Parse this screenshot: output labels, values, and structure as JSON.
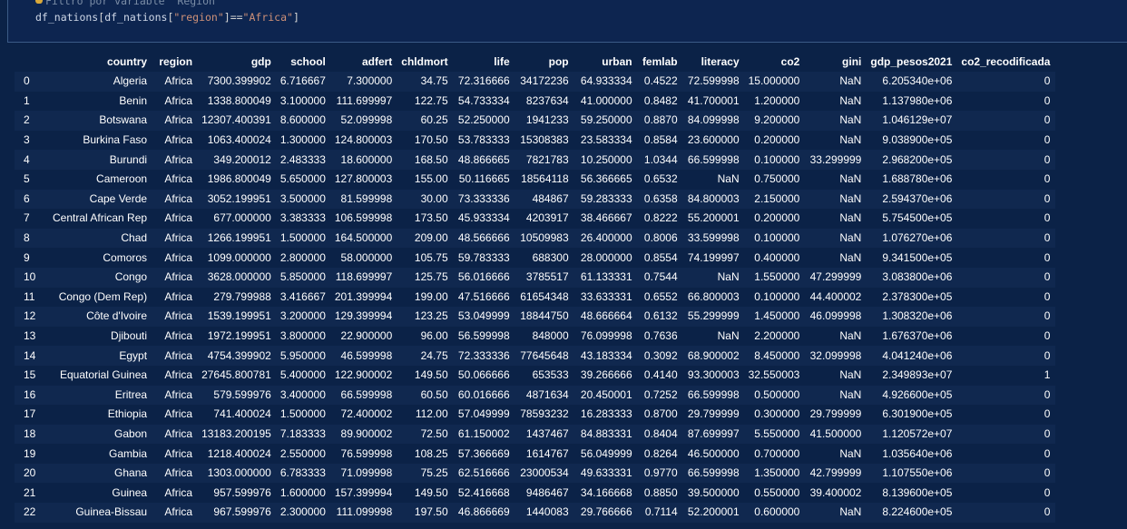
{
  "code_cell": {
    "comment": "Filtro por variable \"Region\"",
    "code_parts": {
      "var1": "df_nations",
      "open": "[",
      "var2": "df_nations",
      "open2": "[",
      "key": "\"region\"",
      "close_eq": "]==",
      "value": "\"Africa\"",
      "close": "]"
    }
  },
  "table": {
    "columns": [
      "country",
      "region",
      "gdp",
      "school",
      "adfert",
      "chldmort",
      "life",
      "pop",
      "urban",
      "femlab",
      "literacy",
      "co2",
      "gini",
      "gdp_pesos2021",
      "co2_recodificada"
    ],
    "rows": [
      [
        "0",
        "Algeria",
        "Africa",
        "7300.399902",
        "6.716667",
        "7.300000",
        "34.75",
        "72.316666",
        "34172236",
        "64.933334",
        "0.4522",
        "72.599998",
        "15.000000",
        "NaN",
        "6.205340e+06",
        "0"
      ],
      [
        "1",
        "Benin",
        "Africa",
        "1338.800049",
        "3.100000",
        "111.699997",
        "122.75",
        "54.733334",
        "8237634",
        "41.000000",
        "0.8482",
        "41.700001",
        "1.200000",
        "NaN",
        "1.137980e+06",
        "0"
      ],
      [
        "2",
        "Botswana",
        "Africa",
        "12307.400391",
        "8.600000",
        "52.099998",
        "60.25",
        "52.250000",
        "1941233",
        "59.250000",
        "0.8870",
        "84.099998",
        "9.200000",
        "NaN",
        "1.046129e+07",
        "0"
      ],
      [
        "3",
        "Burkina Faso",
        "Africa",
        "1063.400024",
        "1.300000",
        "124.800003",
        "170.50",
        "53.783333",
        "15308383",
        "23.583334",
        "0.8584",
        "23.600000",
        "0.200000",
        "NaN",
        "9.038900e+05",
        "0"
      ],
      [
        "4",
        "Burundi",
        "Africa",
        "349.200012",
        "2.483333",
        "18.600000",
        "168.50",
        "48.866665",
        "7821783",
        "10.250000",
        "1.0344",
        "66.599998",
        "0.100000",
        "33.299999",
        "2.968200e+05",
        "0"
      ],
      [
        "5",
        "Cameroon",
        "Africa",
        "1986.800049",
        "5.650000",
        "127.800003",
        "155.00",
        "50.116665",
        "18564118",
        "56.366665",
        "0.6532",
        "NaN",
        "0.750000",
        "NaN",
        "1.688780e+06",
        "0"
      ],
      [
        "6",
        "Cape Verde",
        "Africa",
        "3052.199951",
        "3.500000",
        "81.599998",
        "30.00",
        "73.333336",
        "484867",
        "59.283333",
        "0.6358",
        "84.800003",
        "2.150000",
        "NaN",
        "2.594370e+06",
        "0"
      ],
      [
        "7",
        "Central African Rep",
        "Africa",
        "677.000000",
        "3.383333",
        "106.599998",
        "173.50",
        "45.933334",
        "4203917",
        "38.466667",
        "0.8222",
        "55.200001",
        "0.200000",
        "NaN",
        "5.754500e+05",
        "0"
      ],
      [
        "8",
        "Chad",
        "Africa",
        "1266.199951",
        "1.500000",
        "164.500000",
        "209.00",
        "48.566666",
        "10509983",
        "26.400000",
        "0.8006",
        "33.599998",
        "0.100000",
        "NaN",
        "1.076270e+06",
        "0"
      ],
      [
        "9",
        "Comoros",
        "Africa",
        "1099.000000",
        "2.800000",
        "58.000000",
        "105.75",
        "59.783333",
        "688300",
        "28.000000",
        "0.8554",
        "74.199997",
        "0.400000",
        "NaN",
        "9.341500e+05",
        "0"
      ],
      [
        "10",
        "Congo",
        "Africa",
        "3628.000000",
        "5.850000",
        "118.699997",
        "125.75",
        "56.016666",
        "3785517",
        "61.133331",
        "0.7544",
        "NaN",
        "1.550000",
        "47.299999",
        "3.083800e+06",
        "0"
      ],
      [
        "11",
        "Congo (Dem Rep)",
        "Africa",
        "279.799988",
        "3.416667",
        "201.399994",
        "199.00",
        "47.516666",
        "61654348",
        "33.633331",
        "0.6552",
        "66.800003",
        "0.100000",
        "44.400002",
        "2.378300e+05",
        "0"
      ],
      [
        "12",
        "Côte d'Ivoire",
        "Africa",
        "1539.199951",
        "3.200000",
        "129.399994",
        "123.25",
        "53.049999",
        "18844750",
        "48.666664",
        "0.6132",
        "55.299999",
        "1.450000",
        "46.099998",
        "1.308320e+06",
        "0"
      ],
      [
        "13",
        "Djibouti",
        "Africa",
        "1972.199951",
        "3.800000",
        "22.900000",
        "96.00",
        "56.599998",
        "848000",
        "76.099998",
        "0.7636",
        "NaN",
        "2.200000",
        "NaN",
        "1.676370e+06",
        "0"
      ],
      [
        "14",
        "Egypt",
        "Africa",
        "4754.399902",
        "5.950000",
        "46.599998",
        "24.75",
        "72.333336",
        "77645648",
        "43.183334",
        "0.3092",
        "68.900002",
        "8.450000",
        "32.099998",
        "4.041240e+06",
        "0"
      ],
      [
        "15",
        "Equatorial Guinea",
        "Africa",
        "27645.800781",
        "5.400000",
        "122.900002",
        "149.50",
        "50.066666",
        "653533",
        "39.266666",
        "0.4140",
        "93.300003",
        "32.550003",
        "NaN",
        "2.349893e+07",
        "1"
      ],
      [
        "16",
        "Eritrea",
        "Africa",
        "579.599976",
        "3.400000",
        "66.599998",
        "60.50",
        "60.016666",
        "4871634",
        "20.450001",
        "0.7252",
        "66.599998",
        "0.500000",
        "NaN",
        "4.926600e+05",
        "0"
      ],
      [
        "17",
        "Ethiopia",
        "Africa",
        "741.400024",
        "1.500000",
        "72.400002",
        "112.00",
        "57.049999",
        "78593232",
        "16.283333",
        "0.8700",
        "29.799999",
        "0.300000",
        "29.799999",
        "6.301900e+05",
        "0"
      ],
      [
        "18",
        "Gabon",
        "Africa",
        "13183.200195",
        "7.183333",
        "89.900002",
        "72.50",
        "61.150002",
        "1437467",
        "84.883331",
        "0.8404",
        "87.699997",
        "5.550000",
        "41.500000",
        "1.120572e+07",
        "0"
      ],
      [
        "19",
        "Gambia",
        "Africa",
        "1218.400024",
        "2.550000",
        "76.599998",
        "108.25",
        "57.366669",
        "1614767",
        "56.049999",
        "0.8264",
        "46.500000",
        "0.700000",
        "NaN",
        "1.035640e+06",
        "0"
      ],
      [
        "20",
        "Ghana",
        "Africa",
        "1303.000000",
        "6.783333",
        "71.099998",
        "75.25",
        "62.516666",
        "23000534",
        "49.633331",
        "0.9770",
        "66.599998",
        "1.350000",
        "42.799999",
        "1.107550e+06",
        "0"
      ],
      [
        "21",
        "Guinea",
        "Africa",
        "957.599976",
        "1.600000",
        "157.399994",
        "149.50",
        "52.416668",
        "9486467",
        "34.166668",
        "0.8850",
        "39.500000",
        "0.550000",
        "39.400002",
        "8.139600e+05",
        "0"
      ],
      [
        "22",
        "Guinea-Bissau",
        "Africa",
        "967.599976",
        "2.300000",
        "111.099998",
        "197.50",
        "46.866669",
        "1440083",
        "29.766666",
        "0.7114",
        "52.200001",
        "0.600000",
        "NaN",
        "8.224600e+05",
        "0"
      ]
    ]
  }
}
